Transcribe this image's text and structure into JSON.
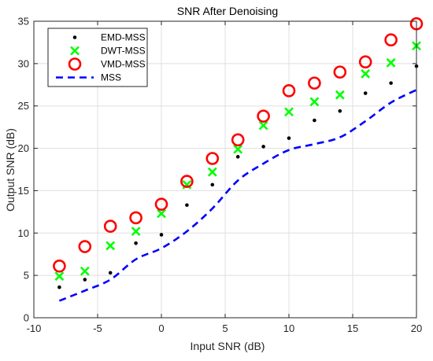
{
  "chart_data": {
    "type": "scatter",
    "title": "SNR After Denoising",
    "xlabel": "Input SNR (dB)",
    "ylabel": "Output SNR (dB)",
    "xlim": [
      -10,
      20
    ],
    "ylim": [
      0,
      35
    ],
    "xticks": [
      -10,
      -5,
      0,
      5,
      10,
      15,
      20
    ],
    "yticks": [
      0,
      5,
      10,
      15,
      20,
      25,
      30,
      35
    ],
    "grid": true,
    "legend_position": "top-left",
    "x": [
      -8,
      -6,
      -4,
      -2,
      0,
      2,
      4,
      6,
      8,
      10,
      12,
      14,
      16,
      18,
      20
    ],
    "series": [
      {
        "name": "EMD-MSS",
        "marker": "dot",
        "color": "#000000",
        "values": [
          3.6,
          4.5,
          5.3,
          8.8,
          9.8,
          13.3,
          15.7,
          19.0,
          20.2,
          21.2,
          23.3,
          24.4,
          26.5,
          27.7,
          29.7
        ]
      },
      {
        "name": "DWT-MSS",
        "marker": "x",
        "color": "#00ff00",
        "values": [
          4.9,
          5.5,
          8.5,
          10.2,
          12.3,
          15.7,
          17.2,
          19.9,
          22.7,
          24.3,
          25.5,
          26.3,
          28.8,
          30.1,
          32.1
        ]
      },
      {
        "name": "VMD-MSS",
        "marker": "circle",
        "color": "#ff0000",
        "values": [
          6.1,
          8.4,
          10.8,
          11.8,
          13.4,
          16.1,
          18.8,
          21.0,
          23.8,
          26.8,
          27.7,
          29.0,
          30.2,
          32.8,
          34.7
        ]
      },
      {
        "name": "MSS",
        "marker": "dashed-line",
        "color": "#0000ff",
        "x": [
          -8,
          -6,
          -4,
          -2,
          0,
          2,
          4,
          6,
          8,
          10,
          12,
          14,
          16,
          18,
          20
        ],
        "values": [
          2.0,
          3.2,
          4.5,
          6.9,
          8.2,
          10.2,
          12.9,
          16.2,
          18.2,
          19.8,
          20.5,
          21.3,
          23.2,
          25.4,
          26.9
        ]
      }
    ]
  }
}
